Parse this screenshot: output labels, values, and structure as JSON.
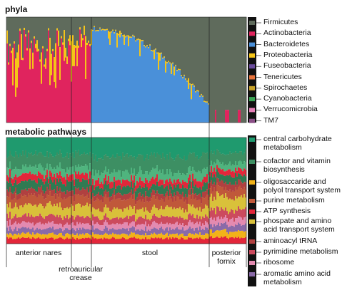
{
  "chart_data": [
    {
      "type": "area",
      "panel_title": "phyla",
      "x_groups": [
        "anterior nares",
        "retroauricular\ncrease",
        "stool",
        "posterior\nfornix"
      ],
      "series": [
        {
          "name": "Firmicutes",
          "color": "#5f6b5c"
        },
        {
          "name": "Actinobacteria",
          "color": "#e0245e"
        },
        {
          "name": "Bacteroidetes",
          "color": "#4a90d9"
        },
        {
          "name": "Proteobacteria",
          "color": "#f5c518"
        },
        {
          "name": "Fuseobacteria",
          "color": "#6a4c9c"
        },
        {
          "name": "Tenericutes",
          "color": "#e8733a"
        },
        {
          "name": "Spirochaetes",
          "color": "#c9a227"
        },
        {
          "name": "Cyanobacteria",
          "color": "#3aa655"
        },
        {
          "name": "Verrucomicrobia",
          "color": "#e67fb8"
        },
        {
          "name": "TM7",
          "color": "#8a4f86"
        }
      ],
      "group_composition": {
        "anterior nares": {
          "Actinobacteria": 0.62,
          "Proteobacteria": 0.06,
          "Firmicutes": 0.32
        },
        "retroauricular\ncrease": {
          "Actinobacteria": 0.8,
          "Proteobacteria": 0.04,
          "Firmicutes": 0.16
        },
        "stool": {
          "Bacteroidetes": 0.78,
          "Proteobacteria": 0.02,
          "Firmicutes": 0.2
        },
        "posterior\nfornix": {
          "Actinobacteria": 0.02,
          "Firmicutes": 0.98
        }
      }
    },
    {
      "type": "area",
      "panel_title": "metabolic pathways",
      "x_groups": [
        "anterior nares",
        "retroauricular\ncrease",
        "stool",
        "posterior\nfornix"
      ],
      "series": [
        {
          "name": "central carbohydrate\nmetabolism",
          "color": "#1f9a6e"
        },
        {
          "name": "cofactor and vitamin\nbiosynthesis",
          "color": "#3d8f63"
        },
        {
          "name": "oligosaccaride and\npolyol transport system",
          "color": "#f2b319"
        },
        {
          "name": "purine metabolism",
          "color": "#c0583a"
        },
        {
          "name": "ATP synthesis",
          "color": "#e3263a"
        },
        {
          "name": "phospate and amino\nacid transport system",
          "color": "#d9c13a"
        },
        {
          "name": "aminoacyl tRNA",
          "color": "#b04040"
        },
        {
          "name": "pyrimidine metabolism",
          "color": "#cc4a5e"
        },
        {
          "name": "ribosome",
          "color": "#e38ab0"
        },
        {
          "name": "aromatic amino acid\nmetabolism",
          "color": "#8a6aa8"
        }
      ]
    }
  ]
}
